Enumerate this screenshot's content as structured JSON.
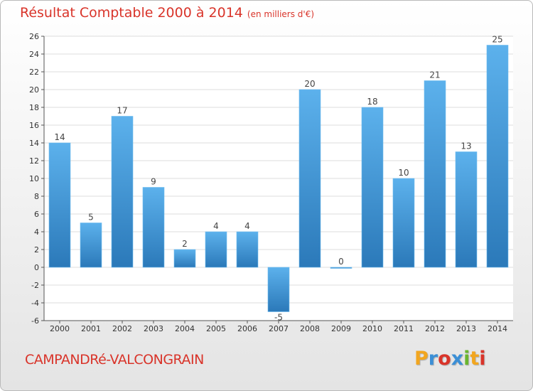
{
  "title": "Résultat Comptable 2000 à 2014",
  "subtitle": "(en milliers d'€)",
  "commune": "CAMPANDRé-VALCONGRAIN",
  "brand": {
    "letters": [
      "P",
      "r",
      "o",
      "x",
      "i",
      "t",
      "i"
    ],
    "colors": [
      "#f2a61f",
      "#3b8fd6",
      "#d9342a",
      "#3b8fd6",
      "#6ab52e",
      "#f2a61f",
      "#d9342a"
    ]
  },
  "colors": {
    "bar_top": "#5cb1ec",
    "bar_bottom": "#2b79b9",
    "title": "#d9342a"
  },
  "chart_data": {
    "type": "bar",
    "categories": [
      "2000",
      "2001",
      "2002",
      "2003",
      "2004",
      "2005",
      "2006",
      "2007",
      "2008",
      "2009",
      "2010",
      "2011",
      "2012",
      "2013",
      "2014"
    ],
    "values": [
      14,
      5,
      17,
      9,
      2,
      4,
      4,
      -5,
      20,
      0,
      18,
      10,
      21,
      13,
      25
    ],
    "ylim": [
      -6,
      26
    ],
    "yticks": [
      -6,
      -4,
      -2,
      0,
      2,
      4,
      6,
      8,
      10,
      12,
      14,
      16,
      18,
      20,
      22,
      24,
      26
    ],
    "grid": true
  }
}
